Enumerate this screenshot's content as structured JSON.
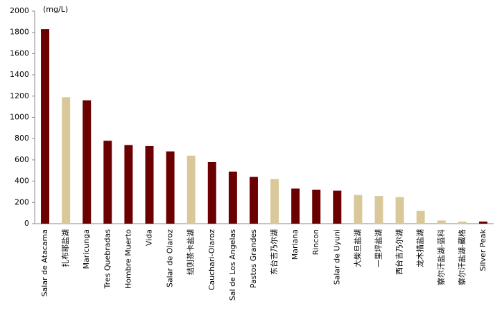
{
  "chart_data": {
    "type": "bar",
    "unit": "(mg/L)",
    "categories": [
      "Salar de Atacama",
      "扎布耶盐湖",
      "Maricunga",
      "Tres Quebradas",
      "Hombre Muerto",
      "Vida",
      "Salar de Olaroz",
      "结则茶卡盐湖",
      "Cauchari-Olaroz",
      "Sal de Los Angelas",
      "Pastos Grandes",
      "东台吉乃尔湖",
      "Mariana",
      "Rincon",
      "Salar de Uyuni",
      "大柴旦盐湖",
      "一里坪盐湖",
      "西台吉乃尔湖",
      "龙木措盐湖",
      "察尔汗盐湖-蓝科",
      "察尔汗盐湖-藏格",
      "Silver Peak"
    ],
    "values": [
      1830,
      1190,
      1160,
      780,
      740,
      730,
      680,
      640,
      580,
      490,
      440,
      420,
      330,
      320,
      310,
      270,
      260,
      250,
      120,
      30,
      20,
      20
    ],
    "colors": [
      "#6b0000",
      "#d9c99a",
      "#6b0000",
      "#6b0000",
      "#6b0000",
      "#6b0000",
      "#6b0000",
      "#d9c99a",
      "#6b0000",
      "#6b0000",
      "#6b0000",
      "#d9c99a",
      "#6b0000",
      "#6b0000",
      "#6b0000",
      "#d9c99a",
      "#d9c99a",
      "#d9c99a",
      "#d9c99a",
      "#d9c99a",
      "#d9c99a",
      "#6b0000"
    ],
    "ylim": [
      0,
      2000
    ],
    "yticks": [
      0,
      200,
      400,
      600,
      800,
      1000,
      1200,
      1400,
      1600,
      1800,
      2000
    ],
    "grid": false
  }
}
